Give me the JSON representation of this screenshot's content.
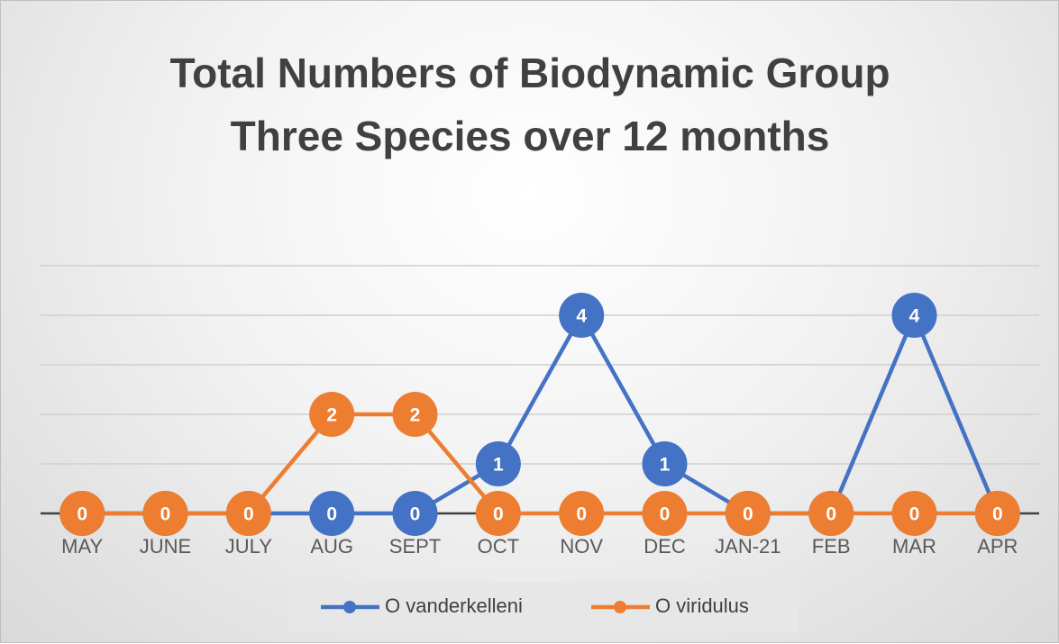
{
  "chart_data": {
    "type": "line",
    "title": "Total Numbers of Biodynamic Group Three Species over 12 months",
    "categories": [
      "MAY",
      "JUNE",
      "JULY",
      "AUG",
      "SEPT",
      "OCT",
      "NOV",
      "DEC",
      "JAN-21",
      "FEB",
      "MAR",
      "APR"
    ],
    "series": [
      {
        "name": "O vanderkelleni",
        "color": "#4472c4",
        "values": [
          0,
          0,
          0,
          0,
          0,
          1,
          4,
          1,
          0,
          0,
          4,
          0
        ]
      },
      {
        "name": "O viridulus",
        "color": "#ed7d31",
        "values": [
          0,
          0,
          0,
          2,
          2,
          0,
          0,
          0,
          0,
          0,
          0,
          0
        ]
      }
    ],
    "ylim": [
      0,
      5
    ],
    "yticks": [
      0,
      1,
      2,
      3,
      4,
      5
    ],
    "grid": true,
    "legend": "bottom"
  }
}
